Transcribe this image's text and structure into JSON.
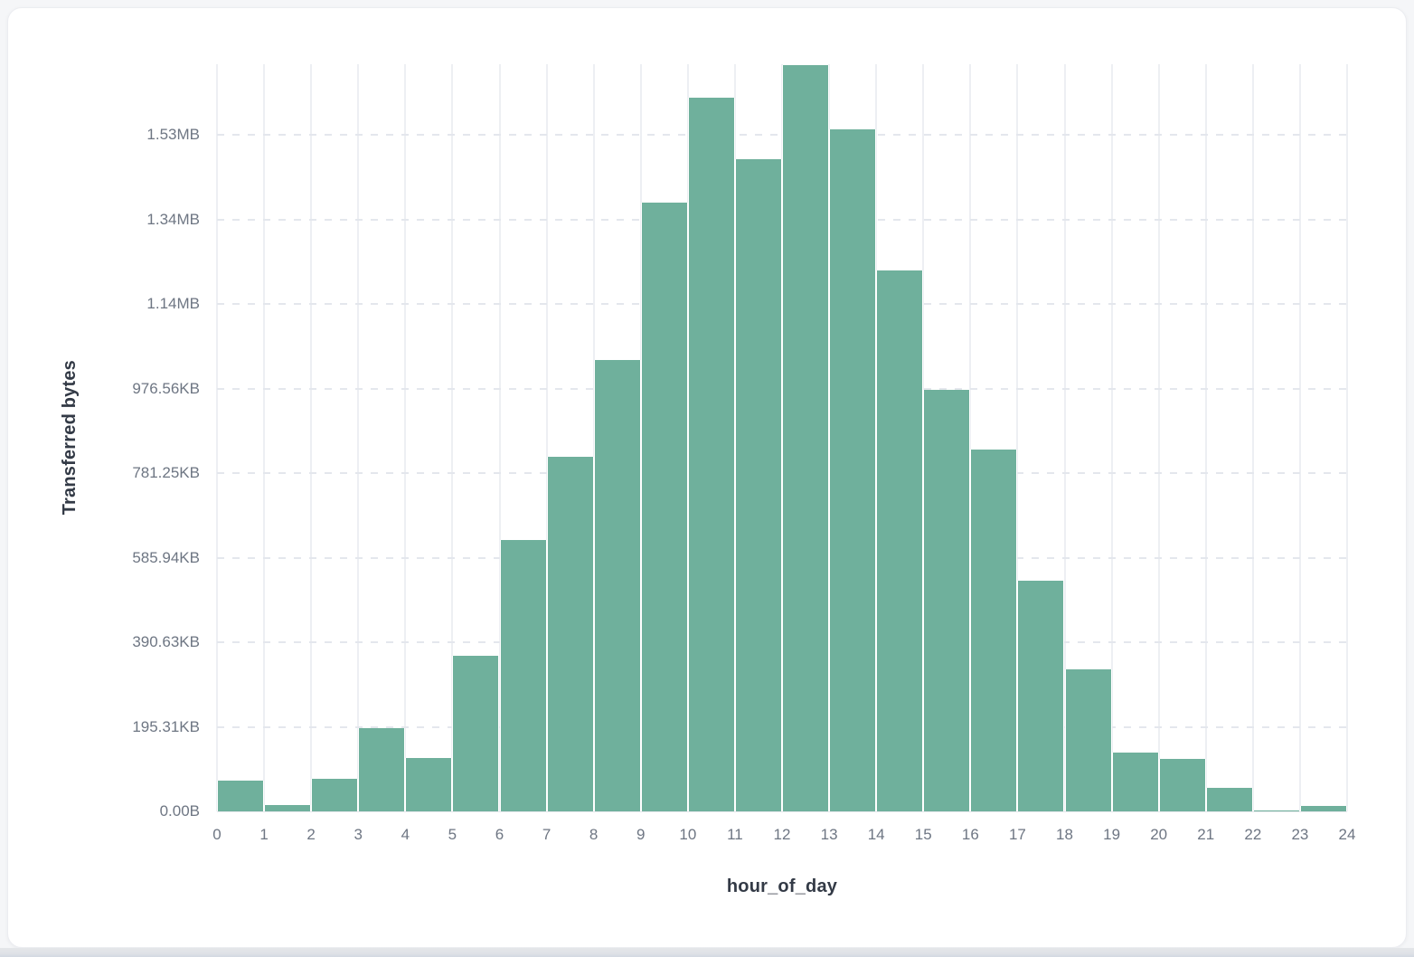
{
  "page": {
    "background_color": "#f5f6f8",
    "card_background_color": "#ffffff"
  },
  "chart_data": {
    "type": "bar",
    "title": "",
    "xlabel": "hour_of_day",
    "ylabel": "Transferred bytes",
    "value_unit": "bytes",
    "categories": [
      0,
      1,
      2,
      3,
      4,
      5,
      6,
      7,
      8,
      9,
      10,
      11,
      12,
      13,
      14,
      15,
      16,
      17,
      18,
      19,
      20,
      21,
      22,
      23
    ],
    "values": [
      72000,
      15000,
      78000,
      196000,
      126000,
      367000,
      641000,
      839000,
      1067000,
      1440000,
      1688000,
      1542000,
      1764000,
      1612000,
      1279000,
      996000,
      855000,
      545000,
      335000,
      140000,
      125000,
      56000,
      3000,
      12000
    ],
    "x_tick_labels": [
      "0",
      "1",
      "2",
      "3",
      "4",
      "5",
      "6",
      "7",
      "8",
      "9",
      "10",
      "11",
      "12",
      "13",
      "14",
      "15",
      "16",
      "17",
      "18",
      "19",
      "20",
      "21",
      "22",
      "23",
      "24"
    ],
    "y_ticks": [
      {
        "value": 0,
        "label": "0.00B"
      },
      {
        "value": 200000,
        "label": "195.31KB"
      },
      {
        "value": 400000,
        "label": "390.63KB"
      },
      {
        "value": 600000,
        "label": "585.94KB"
      },
      {
        "value": 800000,
        "label": "781.25KB"
      },
      {
        "value": 1000000,
        "label": "976.56KB"
      },
      {
        "value": 1200000,
        "label": "1.14MB"
      },
      {
        "value": 1400000,
        "label": "1.34MB"
      },
      {
        "value": 1600000,
        "label": "1.53MB"
      }
    ],
    "xlim": [
      0,
      24
    ],
    "ylim": [
      0,
      1767000
    ],
    "grid": true,
    "legend": false,
    "bar_color": "#6FB09C",
    "vertical_gridline_color": "#edeff3",
    "horizontal_gridline_color": "#e4e7ed"
  }
}
